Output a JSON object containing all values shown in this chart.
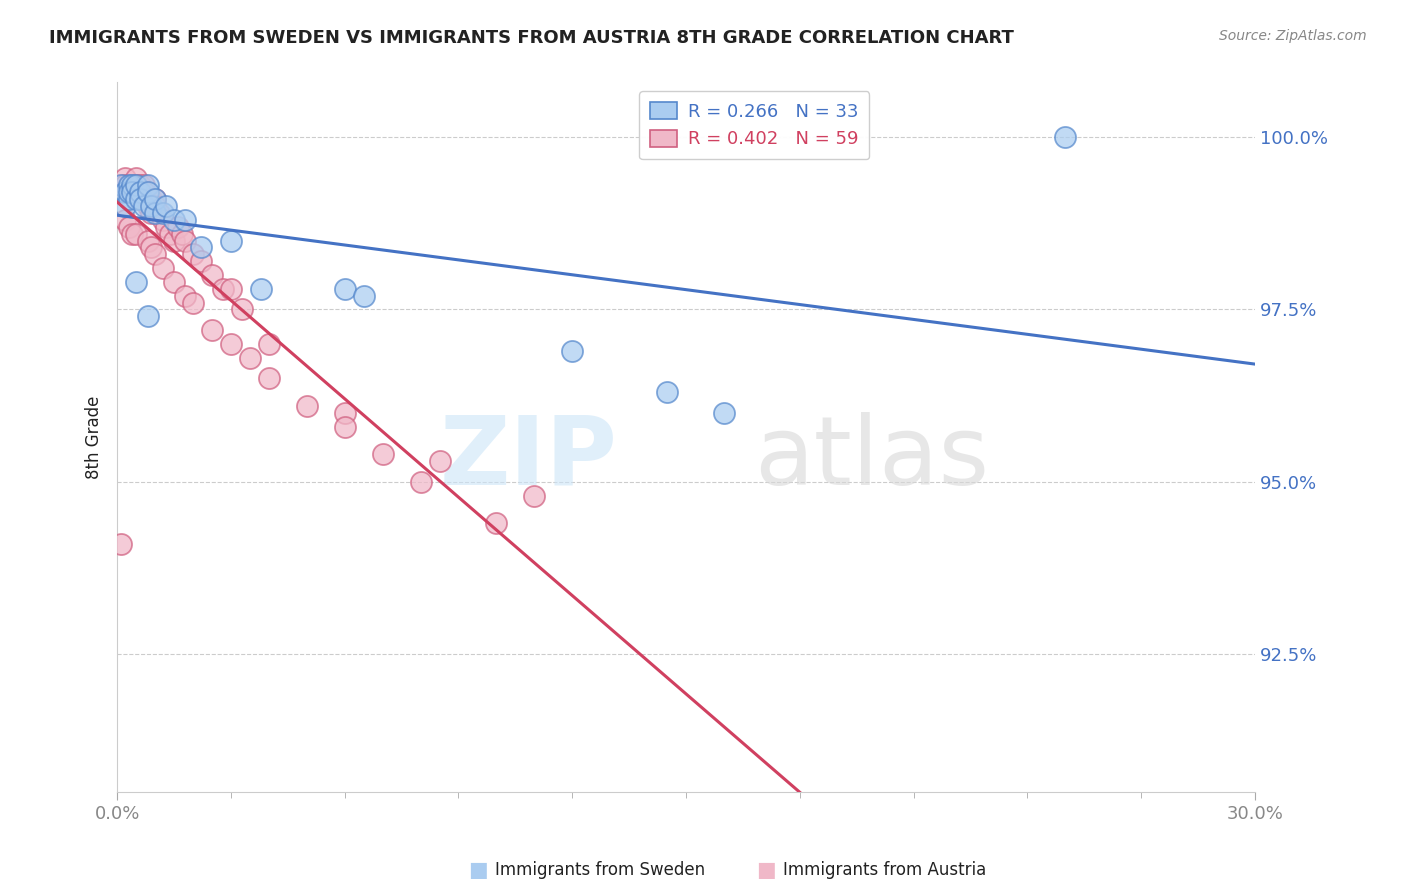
{
  "title": "IMMIGRANTS FROM SWEDEN VS IMMIGRANTS FROM AUSTRIA 8TH GRADE CORRELATION CHART",
  "source": "Source: ZipAtlas.com",
  "ylabel_label": "8th Grade",
  "legend_sweden": "Immigrants from Sweden",
  "legend_austria": "Immigrants from Austria",
  "r_sweden": "R = 0.266",
  "n_sweden": "N = 33",
  "r_austria": "R = 0.402",
  "n_austria": "N = 59",
  "color_sweden": "#aaccf0",
  "color_austria": "#f0b8c8",
  "edge_color_sweden": "#5588cc",
  "edge_color_austria": "#d06080",
  "line_color_sweden": "#4472c4",
  "line_color_austria": "#d04060",
  "xlim": [
    0.0,
    0.3
  ],
  "ylim": [
    0.905,
    1.008
  ],
  "yticks": [
    0.925,
    0.95,
    0.975,
    1.0
  ],
  "ytick_labels": [
    "92.5%",
    "95.0%",
    "97.5%",
    "100.0%"
  ],
  "xtick_labels": [
    "0.0%",
    "30.0%"
  ],
  "xticks": [
    0.0,
    0.3
  ],
  "sweden_x": [
    0.001,
    0.002,
    0.002,
    0.003,
    0.003,
    0.003,
    0.004,
    0.004,
    0.005,
    0.005,
    0.006,
    0.006,
    0.007,
    0.008,
    0.008,
    0.009,
    0.01,
    0.01,
    0.012,
    0.013,
    0.015,
    0.018,
    0.022,
    0.03,
    0.038,
    0.06,
    0.065,
    0.12,
    0.145,
    0.16,
    0.25,
    0.005,
    0.008
  ],
  "sweden_y": [
    0.993,
    0.99,
    0.992,
    0.991,
    0.993,
    0.992,
    0.993,
    0.992,
    0.991,
    0.993,
    0.992,
    0.991,
    0.99,
    0.993,
    0.992,
    0.99,
    0.989,
    0.991,
    0.989,
    0.99,
    0.988,
    0.988,
    0.984,
    0.985,
    0.978,
    0.978,
    0.977,
    0.969,
    0.963,
    0.96,
    1.0,
    0.979,
    0.974
  ],
  "austria_x": [
    0.001,
    0.001,
    0.002,
    0.002,
    0.003,
    0.003,
    0.004,
    0.004,
    0.005,
    0.005,
    0.006,
    0.006,
    0.006,
    0.007,
    0.007,
    0.008,
    0.008,
    0.009,
    0.009,
    0.01,
    0.01,
    0.011,
    0.012,
    0.013,
    0.014,
    0.015,
    0.016,
    0.017,
    0.018,
    0.02,
    0.022,
    0.025,
    0.028,
    0.03,
    0.033,
    0.04,
    0.06,
    0.085,
    0.11,
    0.002,
    0.003,
    0.004,
    0.005,
    0.008,
    0.009,
    0.01,
    0.012,
    0.015,
    0.018,
    0.02,
    0.025,
    0.03,
    0.035,
    0.04,
    0.05,
    0.06,
    0.07,
    0.08,
    0.1
  ],
  "austria_y": [
    0.993,
    0.941,
    0.994,
    0.993,
    0.993,
    0.992,
    0.993,
    0.992,
    0.994,
    0.993,
    0.993,
    0.992,
    0.991,
    0.993,
    0.992,
    0.991,
    0.99,
    0.991,
    0.989,
    0.991,
    0.99,
    0.989,
    0.988,
    0.987,
    0.986,
    0.985,
    0.987,
    0.986,
    0.985,
    0.983,
    0.982,
    0.98,
    0.978,
    0.978,
    0.975,
    0.97,
    0.96,
    0.953,
    0.948,
    0.988,
    0.987,
    0.986,
    0.986,
    0.985,
    0.984,
    0.983,
    0.981,
    0.979,
    0.977,
    0.976,
    0.972,
    0.97,
    0.968,
    0.965,
    0.961,
    0.958,
    0.954,
    0.95,
    0.944
  ],
  "background_color": "#ffffff",
  "grid_color": "#cccccc",
  "title_color": "#222222",
  "axis_label_color": "#888888",
  "ytick_color": "#4472c4",
  "xtick_color": "#888888"
}
